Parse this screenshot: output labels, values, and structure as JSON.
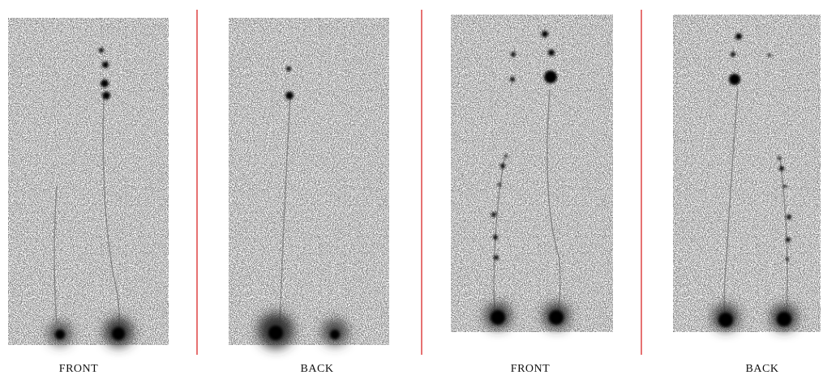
{
  "panels": [
    {
      "label": "FRONT"
    },
    {
      "label": "BACK"
    },
    {
      "label": "FRONT"
    },
    {
      "label": "BACK"
    }
  ]
}
